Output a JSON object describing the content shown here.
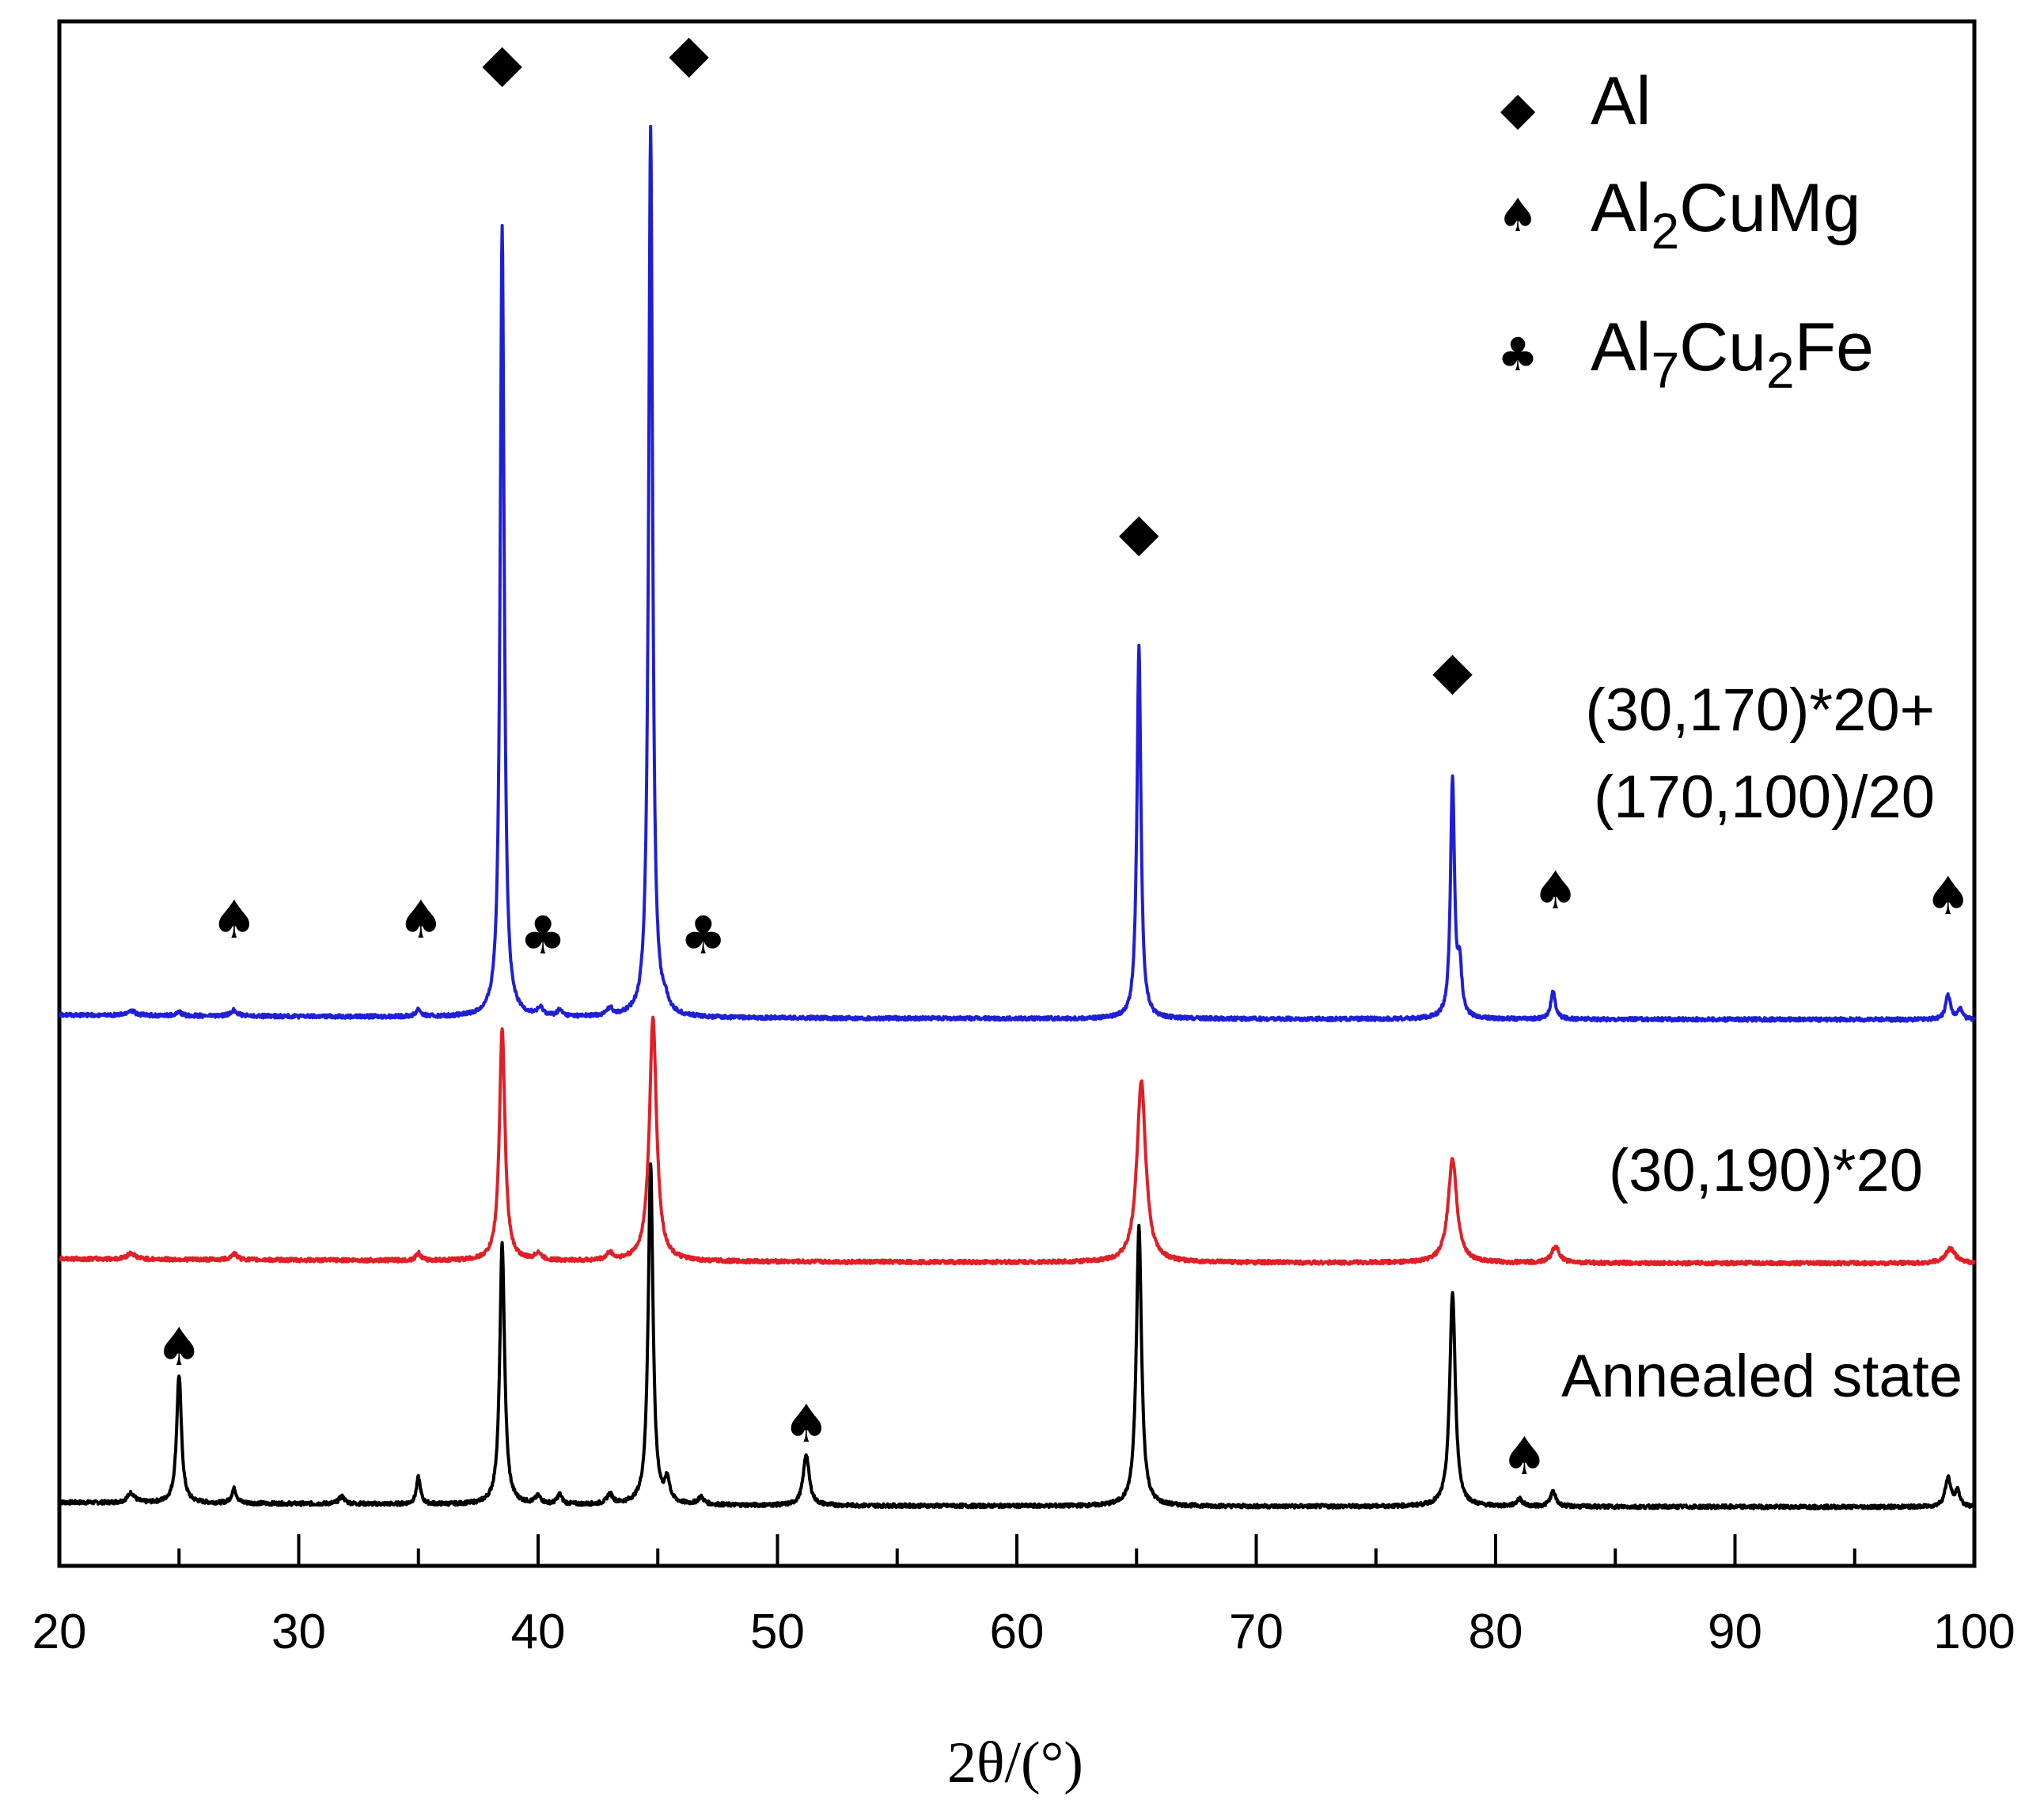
{
  "chart_data": {
    "type": "line",
    "title": "",
    "xlabel": "2θ/(°)",
    "ylabel": "",
    "xlim": [
      20,
      100
    ],
    "xticks": [
      "20",
      "30",
      "40",
      "50",
      "60",
      "70",
      "80",
      "90",
      "100"
    ],
    "yticks_visible": false,
    "legend": {
      "placement": "top-right",
      "entries": [
        {
          "marker": "diamond-icon",
          "glyph": "◆",
          "parts": [
            {
              "t": "Al",
              "sub": false
            }
          ]
        },
        {
          "marker": "spade-icon",
          "glyph": "♠",
          "parts": [
            {
              "t": "Al",
              "sub": false
            },
            {
              "t": "2",
              "sub": true
            },
            {
              "t": "CuMg",
              "sub": false
            }
          ]
        },
        {
          "marker": "club-icon",
          "glyph": "♣",
          "parts": [
            {
              "t": "Al",
              "sub": false
            },
            {
              "t": "7",
              "sub": true
            },
            {
              "t": "Cu",
              "sub": false
            },
            {
              "t": "2",
              "sub": true
            },
            {
              "t": "Fe",
              "sub": false
            }
          ]
        }
      ]
    },
    "series": [
      {
        "name": "Annealed state",
        "label_lines": [
          "Annealed state"
        ],
        "color": "#000000",
        "baseline": 0.0,
        "peaks": [
          {
            "x": 23.0,
            "h": 0.008,
            "w": 0.18
          },
          {
            "x": 25.0,
            "h": 0.105,
            "w": 0.12
          },
          {
            "x": 27.3,
            "h": 0.012,
            "w": 0.12
          },
          {
            "x": 31.8,
            "h": 0.006,
            "w": 0.15
          },
          {
            "x": 35.0,
            "h": 0.022,
            "w": 0.1
          },
          {
            "x": 38.5,
            "h": 0.215,
            "w": 0.12
          },
          {
            "x": 40.0,
            "h": 0.006,
            "w": 0.15
          },
          {
            "x": 40.9,
            "h": 0.008,
            "w": 0.12
          },
          {
            "x": 43.0,
            "h": 0.008,
            "w": 0.15
          },
          {
            "x": 44.7,
            "h": 0.28,
            "w": 0.12
          },
          {
            "x": 45.4,
            "h": 0.018,
            "w": 0.12
          },
          {
            "x": 46.8,
            "h": 0.006,
            "w": 0.15
          },
          {
            "x": 51.2,
            "h": 0.042,
            "w": 0.15
          },
          {
            "x": 65.1,
            "h": 0.23,
            "w": 0.13
          },
          {
            "x": 78.2,
            "h": 0.175,
            "w": 0.14
          },
          {
            "x": 81.0,
            "h": 0.006,
            "w": 0.15
          },
          {
            "x": 82.4,
            "h": 0.012,
            "w": 0.14
          },
          {
            "x": 98.9,
            "h": 0.024,
            "w": 0.14
          },
          {
            "x": 99.3,
            "h": 0.012,
            "w": 0.12
          }
        ]
      },
      {
        "name": "(30,190)*20",
        "label_lines": [
          "(30,190)*20"
        ],
        "color": "#e01f26",
        "baseline": 0.2,
        "peaks": [
          {
            "x": 23.0,
            "h": 0.005,
            "w": 0.2
          },
          {
            "x": 27.3,
            "h": 0.005,
            "w": 0.15
          },
          {
            "x": 35.0,
            "h": 0.006,
            "w": 0.12
          },
          {
            "x": 38.5,
            "h": 0.19,
            "w": 0.14
          },
          {
            "x": 40.0,
            "h": 0.006,
            "w": 0.15
          },
          {
            "x": 43.0,
            "h": 0.006,
            "w": 0.15
          },
          {
            "x": 44.8,
            "h": 0.2,
            "w": 0.18
          },
          {
            "x": 65.2,
            "h": 0.15,
            "w": 0.22
          },
          {
            "x": 78.2,
            "h": 0.085,
            "w": 0.22
          },
          {
            "x": 82.5,
            "h": 0.013,
            "w": 0.2
          },
          {
            "x": 99.0,
            "h": 0.012,
            "w": 0.25
          }
        ]
      },
      {
        "name": "(30,170)*20+(170,100)/20",
        "label_lines": [
          "(30,170)*20+",
          "(170,100)/20"
        ],
        "color": "#1f1fd6",
        "baseline": 0.4,
        "peaks": [
          {
            "x": 23.0,
            "h": 0.004,
            "w": 0.2
          },
          {
            "x": 25.0,
            "h": 0.003,
            "w": 0.12
          },
          {
            "x": 27.3,
            "h": 0.005,
            "w": 0.15
          },
          {
            "x": 35.0,
            "h": 0.006,
            "w": 0.12
          },
          {
            "x": 38.5,
            "h": 0.65,
            "w": 0.1
          },
          {
            "x": 40.1,
            "h": 0.006,
            "w": 0.15
          },
          {
            "x": 40.9,
            "h": 0.005,
            "w": 0.12
          },
          {
            "x": 43.0,
            "h": 0.006,
            "w": 0.15
          },
          {
            "x": 44.7,
            "h": 0.73,
            "w": 0.1
          },
          {
            "x": 45.3,
            "h": 0.008,
            "w": 0.15
          },
          {
            "x": 65.1,
            "h": 0.305,
            "w": 0.1
          },
          {
            "x": 78.2,
            "h": 0.195,
            "w": 0.1
          },
          {
            "x": 78.5,
            "h": 0.04,
            "w": 0.1
          },
          {
            "x": 82.4,
            "h": 0.022,
            "w": 0.12
          },
          {
            "x": 98.9,
            "h": 0.02,
            "w": 0.12
          },
          {
            "x": 99.4,
            "h": 0.008,
            "w": 0.12
          }
        ]
      }
    ],
    "annotations": [
      {
        "glyph": "◆",
        "phase": "Al",
        "x": 38.5,
        "series": "(30,170)*20+(170,100)/20"
      },
      {
        "glyph": "◆",
        "phase": "Al",
        "x": 46.3,
        "series": "(30,170)*20+(170,100)/20"
      },
      {
        "glyph": "◆",
        "phase": "Al",
        "x": 65.1,
        "series": "(30,170)*20+(170,100)/20"
      },
      {
        "glyph": "◆",
        "phase": "Al",
        "x": 78.2,
        "series": "(30,170)*20+(170,100)/20"
      },
      {
        "glyph": "♠",
        "phase": "Al2CuMg",
        "x": 27.3,
        "series": "(30,170)*20+(170,100)/20"
      },
      {
        "glyph": "♠",
        "phase": "Al2CuMg",
        "x": 35.1,
        "series": "(30,170)*20+(170,100)/20"
      },
      {
        "glyph": "♣",
        "phase": "Al7Cu2Fe",
        "x": 40.2,
        "series": "(30,170)*20+(170,100)/20"
      },
      {
        "glyph": "♣",
        "phase": "Al7Cu2Fe",
        "x": 46.9,
        "series": "(30,170)*20+(170,100)/20"
      },
      {
        "glyph": "♠",
        "phase": "Al2CuMg",
        "x": 82.5,
        "series": "(30,170)*20+(170,100)/20"
      },
      {
        "glyph": "♠",
        "phase": "Al2CuMg",
        "x": 98.9,
        "series": "(30,170)*20+(170,100)/20"
      },
      {
        "glyph": "♠",
        "phase": "Al2CuMg",
        "x": 25.0,
        "series": "Annealed state"
      },
      {
        "glyph": "♠",
        "phase": "Al2CuMg",
        "x": 51.2,
        "series": "Annealed state"
      },
      {
        "glyph": "♠",
        "phase": "Al2CuMg",
        "x": 81.2,
        "series": "Annealed state"
      }
    ]
  }
}
